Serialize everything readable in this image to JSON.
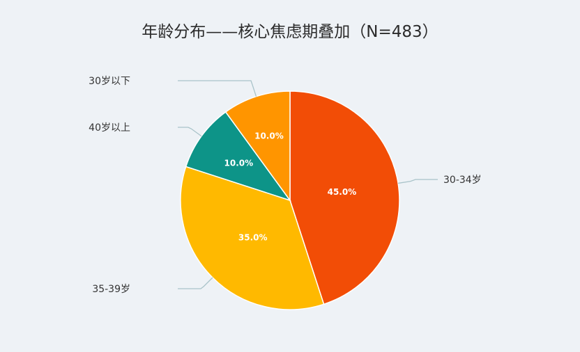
{
  "chart_data": {
    "type": "pie",
    "title": "年龄分布——核心焦虑期叠加（N=483）",
    "categories": [
      "30-34岁",
      "35-39岁",
      "40岁以上",
      "30岁以下"
    ],
    "values": [
      45.0,
      35.0,
      10.0,
      10.0
    ],
    "value_labels": [
      "45.0%",
      "35.0%",
      "10.0%",
      "10.0%"
    ],
    "colors": [
      "#f24d06",
      "#ffb900",
      "#0d9488",
      "#ff9500"
    ],
    "start_direction": "12 o'clock",
    "direction": "clockwise",
    "legend": "none (outside labels with leader lines)"
  }
}
